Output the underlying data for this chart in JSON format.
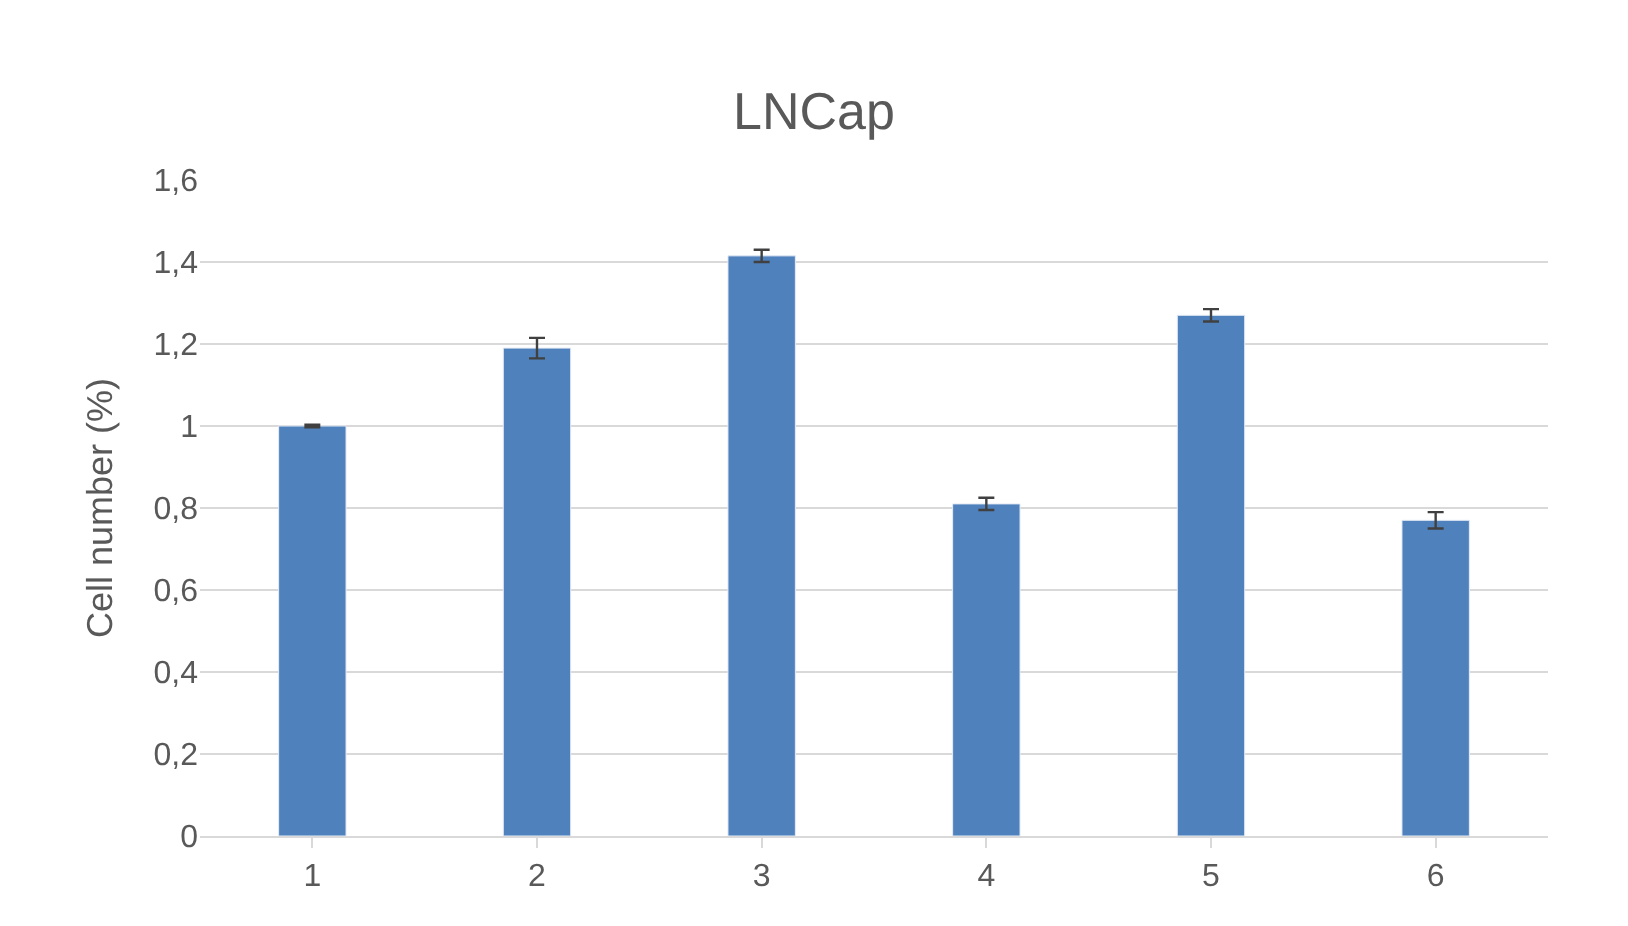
{
  "chart_data": {
    "type": "bar",
    "title": "LNCap",
    "ylabel": "Cell number (%)",
    "categories": [
      "1",
      "2",
      "3",
      "4",
      "5",
      "6"
    ],
    "values": [
      1.0,
      1.19,
      1.415,
      0.81,
      1.27,
      0.77
    ],
    "errors": [
      0.003,
      0.025,
      0.015,
      0.015,
      0.015,
      0.02
    ],
    "color": "#4f81bd",
    "ylim": [
      0,
      1.6
    ],
    "yticks": [
      {
        "value": 0,
        "label": "0"
      },
      {
        "value": 0.2,
        "label": "0,2"
      },
      {
        "value": 0.4,
        "label": "0,4"
      },
      {
        "value": 0.6,
        "label": "0,6"
      },
      {
        "value": 0.8,
        "label": "0,8"
      },
      {
        "value": 1,
        "label": "1"
      },
      {
        "value": 1.2,
        "label": "1,2"
      },
      {
        "value": 1.4,
        "label": "1,4"
      },
      {
        "value": 1.6,
        "label": "1,6"
      }
    ],
    "grid": "y"
  }
}
